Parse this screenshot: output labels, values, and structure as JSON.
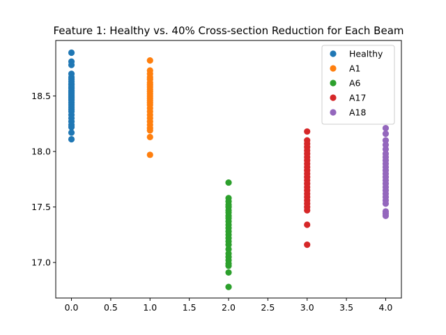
{
  "chart_data": {
    "type": "scatter",
    "title": "Feature 1: Healthy vs. 40% Cross-section Reduction for Each Beam",
    "xlabel": "",
    "ylabel": "",
    "xlim": [
      -0.2,
      4.2
    ],
    "ylim": [
      16.68,
      19.0
    ],
    "x_ticks": [
      0.0,
      0.5,
      1.0,
      1.5,
      2.0,
      2.5,
      3.0,
      3.5,
      4.0
    ],
    "x_tick_labels": [
      "0.0",
      "0.5",
      "1.0",
      "1.5",
      "2.0",
      "2.5",
      "3.0",
      "3.5",
      "4.0"
    ],
    "y_ticks": [
      17.0,
      17.5,
      18.0,
      18.5
    ],
    "y_tick_labels": [
      "17.0",
      "17.5",
      "18.0",
      "18.5"
    ],
    "grid": false,
    "legend_position": "top-right",
    "series": [
      {
        "name": "Healthy",
        "color": "#1f77b4",
        "x": 0,
        "values": [
          18.89,
          18.81,
          18.78,
          18.7,
          18.67,
          18.65,
          18.63,
          18.61,
          18.6,
          18.58,
          18.57,
          18.55,
          18.54,
          18.53,
          18.52,
          18.51,
          18.5,
          18.49,
          18.48,
          18.47,
          18.46,
          18.44,
          18.42,
          18.4,
          18.38,
          18.36,
          18.33,
          18.3,
          18.27,
          18.24,
          18.22,
          18.17,
          18.11
        ]
      },
      {
        "name": "A1",
        "color": "#ff7f0e",
        "x": 1,
        "values": [
          18.82,
          18.73,
          18.7,
          18.67,
          18.65,
          18.62,
          18.6,
          18.58,
          18.56,
          18.54,
          18.52,
          18.5,
          18.48,
          18.46,
          18.44,
          18.42,
          18.39,
          18.36,
          18.33,
          18.3,
          18.27,
          18.24,
          18.21,
          18.19,
          18.13,
          17.97
        ]
      },
      {
        "name": "A6",
        "color": "#2ca02c",
        "x": 2,
        "values": [
          17.72,
          17.58,
          17.55,
          17.52,
          17.5,
          17.47,
          17.45,
          17.42,
          17.4,
          17.37,
          17.34,
          17.31,
          17.28,
          17.25,
          17.22,
          17.19,
          17.16,
          17.12,
          17.08,
          17.05,
          17.02,
          16.99,
          16.97,
          16.91,
          16.78
        ]
      },
      {
        "name": "A17",
        "color": "#d62728",
        "x": 3,
        "values": [
          18.18,
          18.1,
          18.07,
          18.04,
          18.01,
          17.98,
          17.95,
          17.92,
          17.89,
          17.86,
          17.83,
          17.8,
          17.77,
          17.74,
          17.71,
          17.68,
          17.65,
          17.62,
          17.59,
          17.56,
          17.53,
          17.5,
          17.47,
          17.34,
          17.16
        ]
      },
      {
        "name": "A18",
        "color": "#9467bd",
        "x": 4,
        "values": [
          18.21,
          18.16,
          18.1,
          18.06,
          18.02,
          17.98,
          17.95,
          17.92,
          17.89,
          17.86,
          17.83,
          17.8,
          17.77,
          17.74,
          17.71,
          17.68,
          17.65,
          17.62,
          17.59,
          17.56,
          17.53,
          17.46,
          17.44,
          17.42
        ]
      }
    ]
  }
}
